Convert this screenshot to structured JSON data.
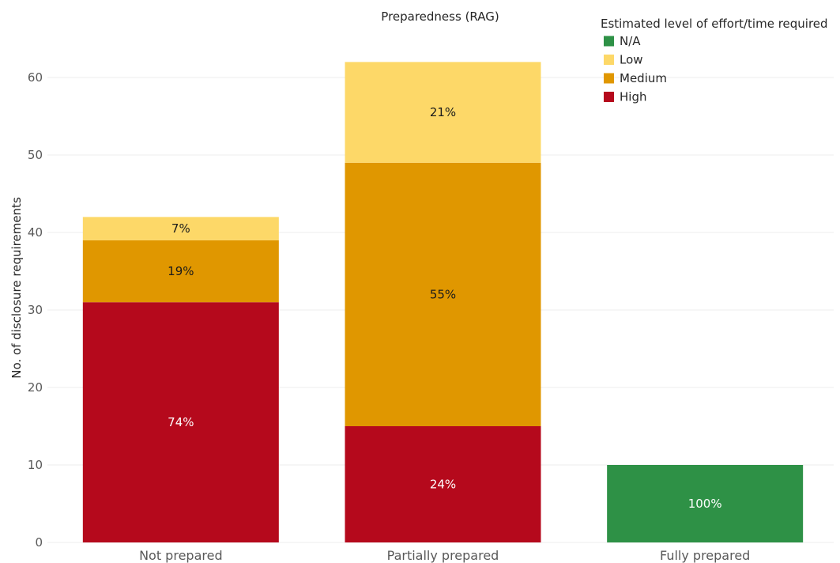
{
  "chart_data": {
    "type": "bar",
    "stacked": true,
    "title": "Preparedness (RAG)",
    "ylabel": "No. of disclosure requirements",
    "xlabel": "",
    "categories": [
      "Not prepared",
      "Partially prepared",
      "Fully prepared"
    ],
    "ylim": [
      0,
      65
    ],
    "yticks": [
      0,
      10,
      20,
      30,
      40,
      50,
      60
    ],
    "grid": true,
    "legend": {
      "title": "Estimated level of effort/time required",
      "position": "top-right",
      "order": [
        "N/A",
        "Low",
        "Medium",
        "High"
      ]
    },
    "series": [
      {
        "name": "High",
        "color": "#b5091c",
        "label_color": "#ffffff",
        "values": [
          31,
          15,
          0
        ],
        "labels": [
          "74%",
          "24%",
          ""
        ]
      },
      {
        "name": "Medium",
        "color": "#e09700",
        "label_color": "#1a1a1a",
        "values": [
          8,
          34,
          0
        ],
        "labels": [
          "19%",
          "55%",
          ""
        ]
      },
      {
        "name": "Low",
        "color": "#fdd868",
        "label_color": "#1a1a1a",
        "values": [
          3,
          13,
          0
        ],
        "labels": [
          "7%",
          "21%",
          ""
        ]
      },
      {
        "name": "N/A",
        "color": "#2e9146",
        "label_color": "#ffffff",
        "values": [
          0,
          0,
          10
        ],
        "labels": [
          "",
          "",
          "100%"
        ]
      }
    ]
  }
}
